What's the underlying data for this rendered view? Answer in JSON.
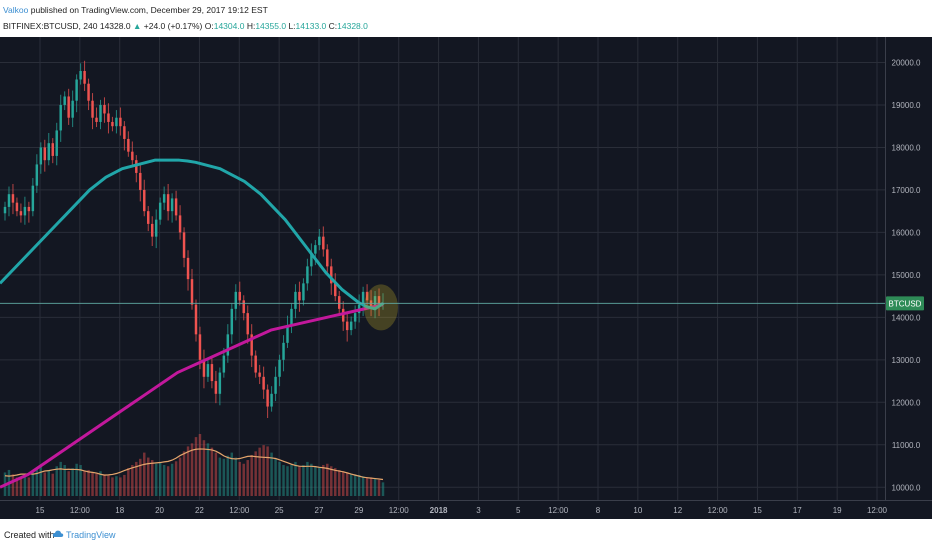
{
  "header": {
    "author": "Valkoo",
    "published_text": "published on TradingView.com, December 29, 2017 19:12 EST",
    "symbol": "BITFINEX:BTCUSD, 240",
    "last_price": "14328.0",
    "change_arrow": "▲",
    "change": "+24.0 (+0.17%)",
    "open_label": "O:",
    "open_value": "14304.0",
    "high_label": "H:",
    "high_value": "14355.0",
    "low_label": "L:",
    "low_value": "14133.0",
    "close_label": "C:",
    "close_value": "14328.0"
  },
  "footer": {
    "created_text": "Created with",
    "brand": "TradingView",
    "brand_icon": "tradingview-cloud-icon"
  },
  "colors": {
    "background": "#131722",
    "grid": "#2a2e39",
    "up": "#26a69a",
    "down": "#ef5350",
    "ma_fast": "#21a6a9",
    "ma_slow": "#c2189c",
    "volume_ma": "#e4a56c",
    "price_line": "#5fa8a2",
    "axis_text": "#b2b5be",
    "highlight": "#c8b428"
  },
  "chart_data": {
    "type": "candlestick",
    "interval": "240",
    "y_axis_ticks": [
      "20000.0",
      "19000.0",
      "18000.0",
      "17000.0",
      "16000.0",
      "15000.0",
      "14000.0",
      "13000.0",
      "12000.0",
      "11000.0",
      "10000.0"
    ],
    "ylim": [
      9700,
      20600
    ],
    "x_axis_ticks": [
      "15",
      "12:00",
      "18",
      "20",
      "22",
      "12:00",
      "25",
      "27",
      "29",
      "12:00",
      "2018",
      "3",
      "5",
      "12:00",
      "8",
      "10",
      "12",
      "12:00",
      "15",
      "17",
      "19",
      "12:00"
    ],
    "price_label": "BTCUSD",
    "price_line_value": 14328,
    "closes": [
      16600,
      16900,
      16700,
      16500,
      16400,
      16600,
      16500,
      17100,
      17600,
      18000,
      17700,
      18100,
      17800,
      18400,
      19000,
      19200,
      18700,
      19100,
      19600,
      19800,
      19500,
      19100,
      18700,
      18600,
      19000,
      18800,
      18600,
      18500,
      18700,
      18500,
      18200,
      17900,
      17700,
      17400,
      17000,
      16500,
      16200,
      15900,
      16300,
      16700,
      16900,
      16500,
      16800,
      16400,
      16000,
      15400,
      14900,
      14300,
      13600,
      13000,
      12600,
      12900,
      12500,
      12200,
      12700,
      13100,
      13600,
      14200,
      14600,
      14400,
      14100,
      13600,
      13100,
      12700,
      12600,
      12300,
      11900,
      12200,
      12600,
      13000,
      13400,
      13800,
      14200,
      14600,
      14400,
      14800,
      15200,
      15500,
      15700,
      15900,
      15600,
      15200,
      14800,
      14500,
      14200,
      13900,
      13700,
      13900,
      14100,
      14300,
      14600,
      14400,
      14200,
      14500,
      14300,
      14328
    ],
    "volumes": [
      0.38,
      0.42,
      0.35,
      0.3,
      0.28,
      0.33,
      0.3,
      0.4,
      0.45,
      0.5,
      0.38,
      0.42,
      0.36,
      0.48,
      0.55,
      0.5,
      0.4,
      0.45,
      0.52,
      0.5,
      0.4,
      0.42,
      0.38,
      0.36,
      0.4,
      0.35,
      0.33,
      0.3,
      0.32,
      0.3,
      0.34,
      0.45,
      0.5,
      0.55,
      0.6,
      0.7,
      0.62,
      0.58,
      0.52,
      0.55,
      0.5,
      0.48,
      0.52,
      0.56,
      0.62,
      0.72,
      0.8,
      0.85,
      0.95,
      1.0,
      0.9,
      0.85,
      0.78,
      0.7,
      0.62,
      0.6,
      0.65,
      0.7,
      0.62,
      0.55,
      0.52,
      0.58,
      0.66,
      0.72,
      0.78,
      0.82,
      0.8,
      0.7,
      0.6,
      0.55,
      0.5,
      0.48,
      0.5,
      0.55,
      0.48,
      0.5,
      0.55,
      0.52,
      0.48,
      0.46,
      0.5,
      0.52,
      0.48,
      0.45,
      0.42,
      0.4,
      0.38,
      0.36,
      0.35,
      0.34,
      0.32,
      0.3,
      0.3,
      0.28,
      0.26,
      0.22
    ],
    "ma_fast": [
      14800,
      15000,
      15200,
      15400,
      15600,
      15800,
      16000,
      16200,
      16400,
      16600,
      16800,
      17000,
      17150,
      17300,
      17400,
      17500,
      17550,
      17600,
      17650,
      17700,
      17700,
      17700,
      17700,
      17680,
      17650,
      17600,
      17550,
      17500,
      17400,
      17300,
      17200,
      17050,
      16900,
      16700,
      16500,
      16300,
      16050,
      15800,
      15550,
      15300,
      15050,
      14850,
      14650,
      14500,
      14350,
      14250,
      14200,
      14328
    ],
    "ma_slow": [
      10000,
      10100,
      10200,
      10300,
      10450,
      10600,
      10750,
      10900,
      11050,
      11200,
      11350,
      11500,
      11650,
      11800,
      11950,
      12100,
      12250,
      12400,
      12550,
      12700,
      12800,
      12900,
      13000,
      13100,
      13200,
      13300,
      13400,
      13500,
      13600,
      13700,
      13750,
      13800,
      13850,
      13900,
      13950,
      14000,
      14050,
      14100,
      14150,
      14200,
      14250,
      14300
    ]
  }
}
